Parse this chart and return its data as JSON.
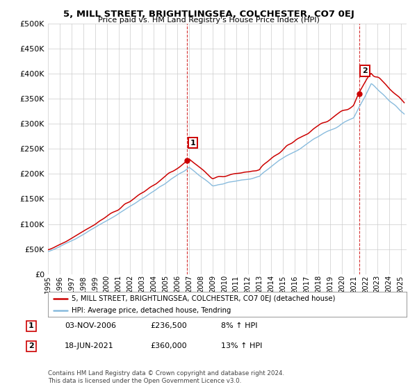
{
  "title": "5, MILL STREET, BRIGHTLINGSEA, COLCHESTER, CO7 0EJ",
  "subtitle": "Price paid vs. HM Land Registry's House Price Index (HPI)",
  "legend_line1": "5, MILL STREET, BRIGHTLINGSEA, COLCHESTER, CO7 0EJ (detached house)",
  "legend_line2": "HPI: Average price, detached house, Tendring",
  "annotation1_label": "1",
  "annotation1_date": "03-NOV-2006",
  "annotation1_price": "£236,500",
  "annotation1_hpi": "8% ↑ HPI",
  "annotation2_label": "2",
  "annotation2_date": "18-JUN-2021",
  "annotation2_price": "£360,000",
  "annotation2_hpi": "13% ↑ HPI",
  "footnote": "Contains HM Land Registry data © Crown copyright and database right 2024.\nThis data is licensed under the Open Government Licence v3.0.",
  "sale1_year": 2006.84,
  "sale1_value": 236500,
  "sale2_year": 2021.46,
  "sale2_value": 360000,
  "ylim_min": 0,
  "ylim_max": 500000,
  "xlim_min": 1995,
  "xlim_max": 2025.5,
  "property_color": "#cc0000",
  "hpi_color": "#88bbdd",
  "vline_color": "#cc0000",
  "background_color": "#ffffff",
  "grid_color": "#cccccc"
}
